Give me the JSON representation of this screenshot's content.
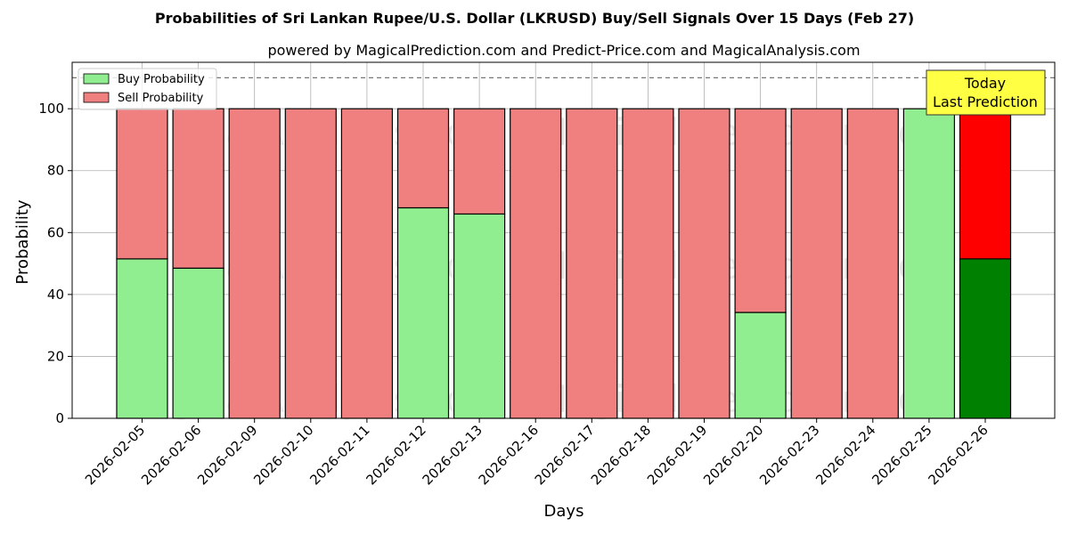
{
  "chart_data": {
    "type": "bar",
    "stacked": true,
    "title": "Probabilities of Sri Lankan Rupee/U.S. Dollar (LKRUSD) Buy/Sell Signals Over 15 Days (Feb 27)",
    "subtitle": "powered by MagicalPrediction.com and Predict-Price.com and MagicalAnalysis.com",
    "xlabel": "Days",
    "ylabel": "Probability",
    "ylim": [
      0,
      115
    ],
    "yticks": [
      0,
      20,
      40,
      60,
      80,
      100
    ],
    "reference_line": 110,
    "grid": true,
    "legend_position": "top-left",
    "categories": [
      "2026-02-05",
      "2026-02-06",
      "2026-02-09",
      "2026-02-10",
      "2026-02-11",
      "2026-02-12",
      "2026-02-13",
      "2026-02-16",
      "2026-02-17",
      "2026-02-18",
      "2026-02-19",
      "2026-02-20",
      "2026-02-23",
      "2026-02-24",
      "2026-02-25",
      "2026-02-26"
    ],
    "series": [
      {
        "name": "Buy Probability",
        "color": "#90ee90",
        "values": [
          51.5,
          48.5,
          0,
          0,
          0,
          68,
          66,
          0,
          0,
          0,
          0,
          34.2,
          0,
          0,
          100,
          51.5
        ]
      },
      {
        "name": "Sell Probability",
        "color": "#f08080",
        "values": [
          48.5,
          51.5,
          100,
          100,
          100,
          32,
          34,
          100,
          100,
          100,
          100,
          65.8,
          100,
          100,
          0,
          48.5
        ]
      }
    ],
    "highlight": {
      "index": 15,
      "buy_color": "#008000",
      "sell_color": "#ff0000"
    },
    "annotation": {
      "lines": [
        "Today",
        "Last Prediction"
      ],
      "background": "#ffff44"
    },
    "watermark": [
      "MagicalAnalysis.com",
      "MagicalPrediction.com"
    ]
  }
}
